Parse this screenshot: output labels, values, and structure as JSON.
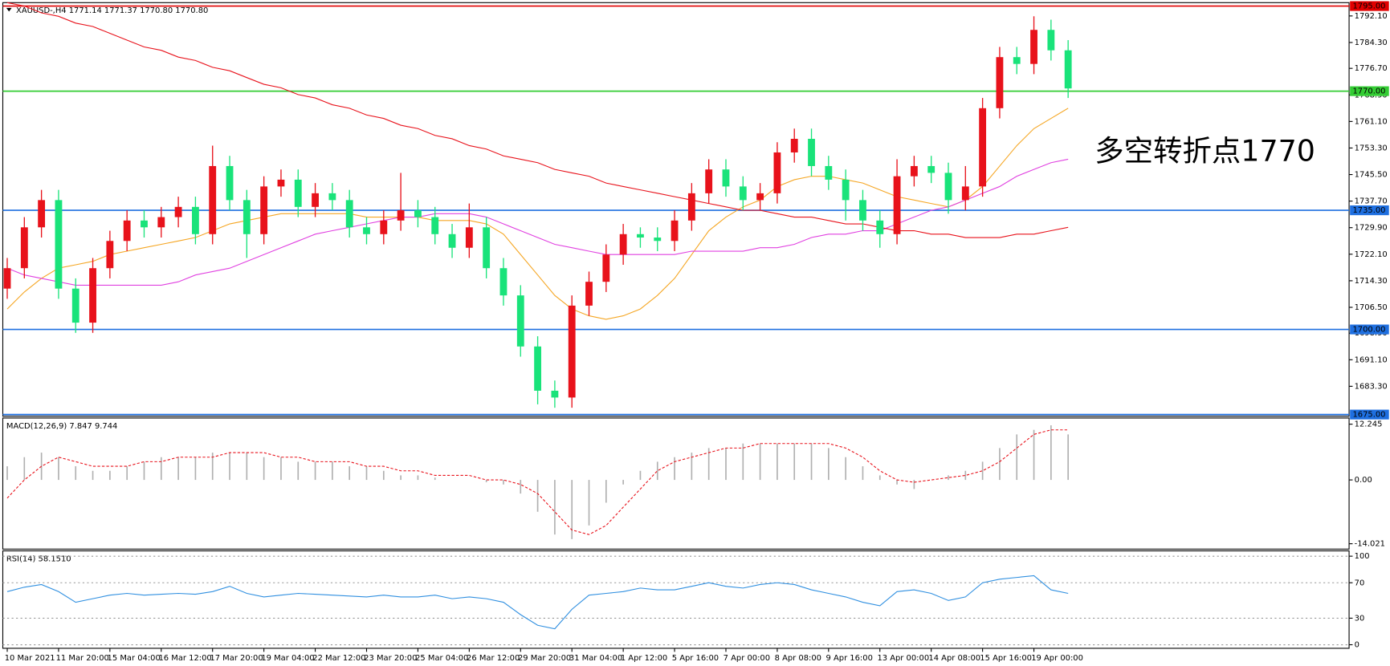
{
  "chart_data": [
    {
      "type": "candlestick",
      "title": "XAUUSD-,H4  1771.14 1771.37 1770.80 1770.80",
      "annotation": "多空转折点1770",
      "annotation_color": "#e8121b",
      "up_color": "#e8121b",
      "down_color": "#19e37a",
      "categories": [
        "10 Mar 2021",
        null,
        null,
        "11 Mar 20:00",
        null,
        null,
        "15 Mar 04:00",
        null,
        null,
        "16 Mar 12:00",
        null,
        null,
        "17 Mar 20:00",
        null,
        null,
        "19 Mar 04:00",
        null,
        null,
        "22 Mar 12:00",
        null,
        null,
        "23 Mar 20:00",
        null,
        null,
        "25 Mar 04:00",
        null,
        null,
        "26 Mar 12:00",
        null,
        null,
        "29 Mar 20:00",
        null,
        null,
        "31 Mar 04:00",
        null,
        null,
        "1 Apr 12:00",
        null,
        null,
        "5 Apr 16:00",
        null,
        null,
        "7 Apr 00:00",
        null,
        null,
        "8 Apr 08:00",
        null,
        null,
        "9 Apr 16:00",
        null,
        null,
        "13 Apr 00:00",
        null,
        null,
        "14 Apr 08:00",
        null,
        null,
        "15 Apr 16:00",
        null,
        null,
        "19 Apr 00:00",
        null,
        null
      ],
      "open": [
        1712,
        1718,
        1730,
        1738,
        1712,
        1702,
        1718,
        1726,
        1732,
        1730,
        1733,
        1736,
        1728,
        1748,
        1738,
        1728,
        1742,
        1744,
        1736,
        1740,
        1738,
        1730,
        1728,
        1732,
        1735,
        1733,
        1728,
        1724,
        1730,
        1718,
        1710,
        1695,
        1682,
        1680,
        1707,
        1714,
        1722,
        1728,
        1727,
        1726,
        1732,
        1740,
        1747,
        1742,
        1738,
        1740,
        1752,
        1756,
        1748,
        1744,
        1738,
        1732,
        1728,
        1745,
        1748,
        1746,
        1738,
        1742,
        1765,
        1780,
        1778,
        1788,
        1782
      ],
      "high": [
        1721,
        1733,
        1741,
        1741,
        1715,
        1721,
        1729,
        1735,
        1735,
        1736,
        1739,
        1739,
        1754,
        1751,
        1741,
        1745,
        1747,
        1747,
        1743,
        1743,
        1741,
        1733,
        1735,
        1746,
        1738,
        1736,
        1731,
        1737,
        1733,
        1721,
        1713,
        1698,
        1685,
        1710,
        1717,
        1725,
        1731,
        1730,
        1730,
        1735,
        1743,
        1750,
        1750,
        1745,
        1743,
        1755,
        1759,
        1759,
        1751,
        1747,
        1741,
        1735,
        1750,
        1751,
        1751,
        1749,
        1748,
        1768,
        1783,
        1783,
        1792,
        1791,
        1785
      ],
      "low": [
        1709,
        1715,
        1727,
        1709,
        1699,
        1699,
        1715,
        1723,
        1727,
        1727,
        1730,
        1725,
        1725,
        1735,
        1721,
        1725,
        1739,
        1733,
        1733,
        1735,
        1727,
        1725,
        1725,
        1729,
        1730,
        1725,
        1721,
        1721,
        1715,
        1707,
        1692,
        1678,
        1677,
        1677,
        1704,
        1711,
        1719,
        1724,
        1723,
        1723,
        1729,
        1737,
        1739,
        1735,
        1735,
        1737,
        1749,
        1745,
        1741,
        1732,
        1729,
        1724,
        1725,
        1742,
        1743,
        1734,
        1735,
        1739,
        1762,
        1775,
        1775,
        1779,
        1768
      ],
      "close": [
        1718,
        1730,
        1738,
        1712,
        1702,
        1718,
        1726,
        1732,
        1730,
        1733,
        1736,
        1728,
        1748,
        1738,
        1728,
        1742,
        1744,
        1736,
        1740,
        1738,
        1730,
        1728,
        1732,
        1735,
        1733,
        1728,
        1724,
        1730,
        1718,
        1710,
        1695,
        1682,
        1680,
        1707,
        1714,
        1722,
        1728,
        1727,
        1726,
        1732,
        1740,
        1747,
        1742,
        1738,
        1740,
        1752,
        1756,
        1748,
        1744,
        1738,
        1732,
        1728,
        1745,
        1748,
        1746,
        1738,
        1742,
        1765,
        1780,
        1778,
        1788,
        1782,
        1770.8
      ],
      "series": [
        {
          "color": "#f5a623",
          "values": [
            1706,
            1711,
            1715,
            1718,
            1719,
            1720,
            1722,
            1723,
            1724,
            1725,
            1726,
            1727,
            1729,
            1731,
            1732,
            1733,
            1734,
            1734,
            1734,
            1734,
            1734,
            1733,
            1733,
            1733,
            1733,
            1732,
            1732,
            1732,
            1731,
            1728,
            1722,
            1716,
            1710,
            1706,
            1704,
            1703,
            1704,
            1706,
            1710,
            1715,
            1722,
            1729,
            1733,
            1736,
            1738,
            1742,
            1744,
            1745,
            1745,
            1744,
            1743,
            1741,
            1739,
            1738,
            1737,
            1736,
            1738,
            1742,
            1748,
            1754,
            1759,
            1762,
            1765
          ]
        },
        {
          "color": "#e040e0",
          "values": [
            1718,
            1716,
            1715,
            1714,
            1713,
            1713,
            1713,
            1713,
            1713,
            1713,
            1714,
            1716,
            1717,
            1718,
            1720,
            1722,
            1724,
            1726,
            1728,
            1729,
            1730,
            1731,
            1732,
            1733,
            1733,
            1734,
            1734,
            1734,
            1733,
            1731,
            1729,
            1727,
            1725,
            1724,
            1723,
            1722,
            1722,
            1722,
            1722,
            1722,
            1723,
            1723,
            1723,
            1723,
            1724,
            1724,
            1725,
            1727,
            1728,
            1728,
            1729,
            1729,
            1731,
            1733,
            1735,
            1736,
            1738,
            1740,
            1742,
            1745,
            1747,
            1749,
            1750
          ]
        },
        {
          "color": "#e8121b",
          "values": [
            1796,
            1795,
            1793,
            1792,
            1790,
            1789,
            1787,
            1785,
            1783,
            1782,
            1780,
            1779,
            1777,
            1776,
            1774,
            1772,
            1771,
            1769,
            1768,
            1766,
            1765,
            1763,
            1762,
            1760,
            1759,
            1757,
            1756,
            1754,
            1753,
            1751,
            1750,
            1749,
            1747,
            1746,
            1745,
            1743,
            1742,
            1741,
            1740,
            1739,
            1738,
            1737,
            1736,
            1735,
            1735,
            1734,
            1733,
            1733,
            1732,
            1731,
            1731,
            1730,
            1729,
            1729,
            1728,
            1728,
            1727,
            1727,
            1727,
            1728,
            1728,
            1729,
            1730
          ]
        }
      ],
      "ylim": [
        1674.5,
        1796
      ],
      "yticks": [
        {
          "value": 1792.1,
          "label": "1792.10"
        },
        {
          "value": 1784.3,
          "label": "1784.30"
        },
        {
          "value": 1776.7,
          "label": "1776.70"
        },
        {
          "value": 1768.9,
          "label": "1768.90"
        },
        {
          "value": 1761.1,
          "label": "1761.10"
        },
        {
          "value": 1753.3,
          "label": "1753.30"
        },
        {
          "value": 1745.5,
          "label": "1745.50"
        },
        {
          "value": 1737.7,
          "label": "1737.70"
        },
        {
          "value": 1729.9,
          "label": "1729.90"
        },
        {
          "value": 1722.1,
          "label": "1722.10"
        },
        {
          "value": 1714.3,
          "label": "1714.30"
        },
        {
          "value": 1706.5,
          "label": "1706.50"
        },
        {
          "value": 1698.9,
          "label": "1698.90"
        },
        {
          "value": 1691.1,
          "label": "1691.10"
        },
        {
          "value": 1683.3,
          "label": "1683.30"
        }
      ],
      "levels": [
        {
          "value": 1795,
          "label": "1795.00",
          "color": "#e00000"
        },
        {
          "value": 1770,
          "label": "1770.00",
          "color": "#33cc33"
        },
        {
          "value": 1735,
          "label": "1735.00",
          "color": "#1e6fe0"
        },
        {
          "value": 1700,
          "label": "1700.00",
          "color": "#1e6fe0"
        },
        {
          "value": 1675,
          "label": "1675.00",
          "color": "#1e6fe0"
        }
      ],
      "grid": false
    },
    {
      "type": "macd",
      "title": "MACD(12,26,9) 7.847 9.744",
      "color": "#b0b0b0",
      "signal_color": "#e8121b",
      "values": [
        3,
        5,
        6,
        5,
        3,
        2,
        2,
        3,
        4,
        5,
        5,
        5,
        6,
        6,
        6,
        5,
        5,
        4,
        4,
        4,
        3,
        3,
        2,
        1,
        1,
        0.5,
        0,
        0,
        -0.5,
        -1,
        -3,
        -7,
        -12,
        -13,
        -10,
        -5,
        -1,
        2,
        4,
        5,
        6,
        7,
        7,
        8,
        8,
        8,
        8,
        8,
        7,
        5,
        3,
        1,
        -1,
        -2,
        0,
        1,
        2,
        4,
        7,
        10,
        11,
        12,
        10
      ],
      "signal": [
        -4,
        0,
        3,
        5,
        4,
        3,
        3,
        3,
        4,
        4,
        5,
        5,
        5,
        6,
        6,
        6,
        5,
        5,
        4,
        4,
        4,
        3,
        3,
        2,
        2,
        1,
        1,
        1,
        0,
        0,
        -1,
        -3,
        -7,
        -11,
        -12,
        -10,
        -6,
        -2,
        2,
        4,
        5,
        6,
        7,
        7,
        8,
        8,
        8,
        8,
        8,
        7,
        5,
        2,
        0,
        -0.5,
        0,
        0.5,
        1,
        2,
        4,
        7,
        10,
        11,
        11
      ],
      "ylim": [
        -15.2,
        13.6
      ],
      "yticks": [
        12.245,
        {
          "value": 0,
          "label": "0.00"
        },
        -14.021
      ],
      "grid": false
    },
    {
      "type": "line",
      "title": "RSI(14) 58.1510",
      "color": "#2f8fe0",
      "values": [
        60,
        65,
        68,
        60,
        48,
        52,
        56,
        58,
        56,
        57,
        58,
        57,
        60,
        66,
        58,
        54,
        56,
        58,
        57,
        56,
        55,
        54,
        56,
        54,
        54,
        56,
        52,
        54,
        52,
        48,
        34,
        22,
        18,
        40,
        56,
        58,
        60,
        64,
        62,
        62,
        66,
        70,
        66,
        64,
        68,
        70,
        68,
        62,
        58,
        54,
        48,
        44,
        60,
        62,
        58,
        50,
        54,
        70,
        74,
        76,
        78,
        62,
        58
      ],
      "ylim": [
        -4,
        106
      ],
      "yticks": [
        100,
        70,
        30,
        0
      ],
      "grid": true
    }
  ]
}
